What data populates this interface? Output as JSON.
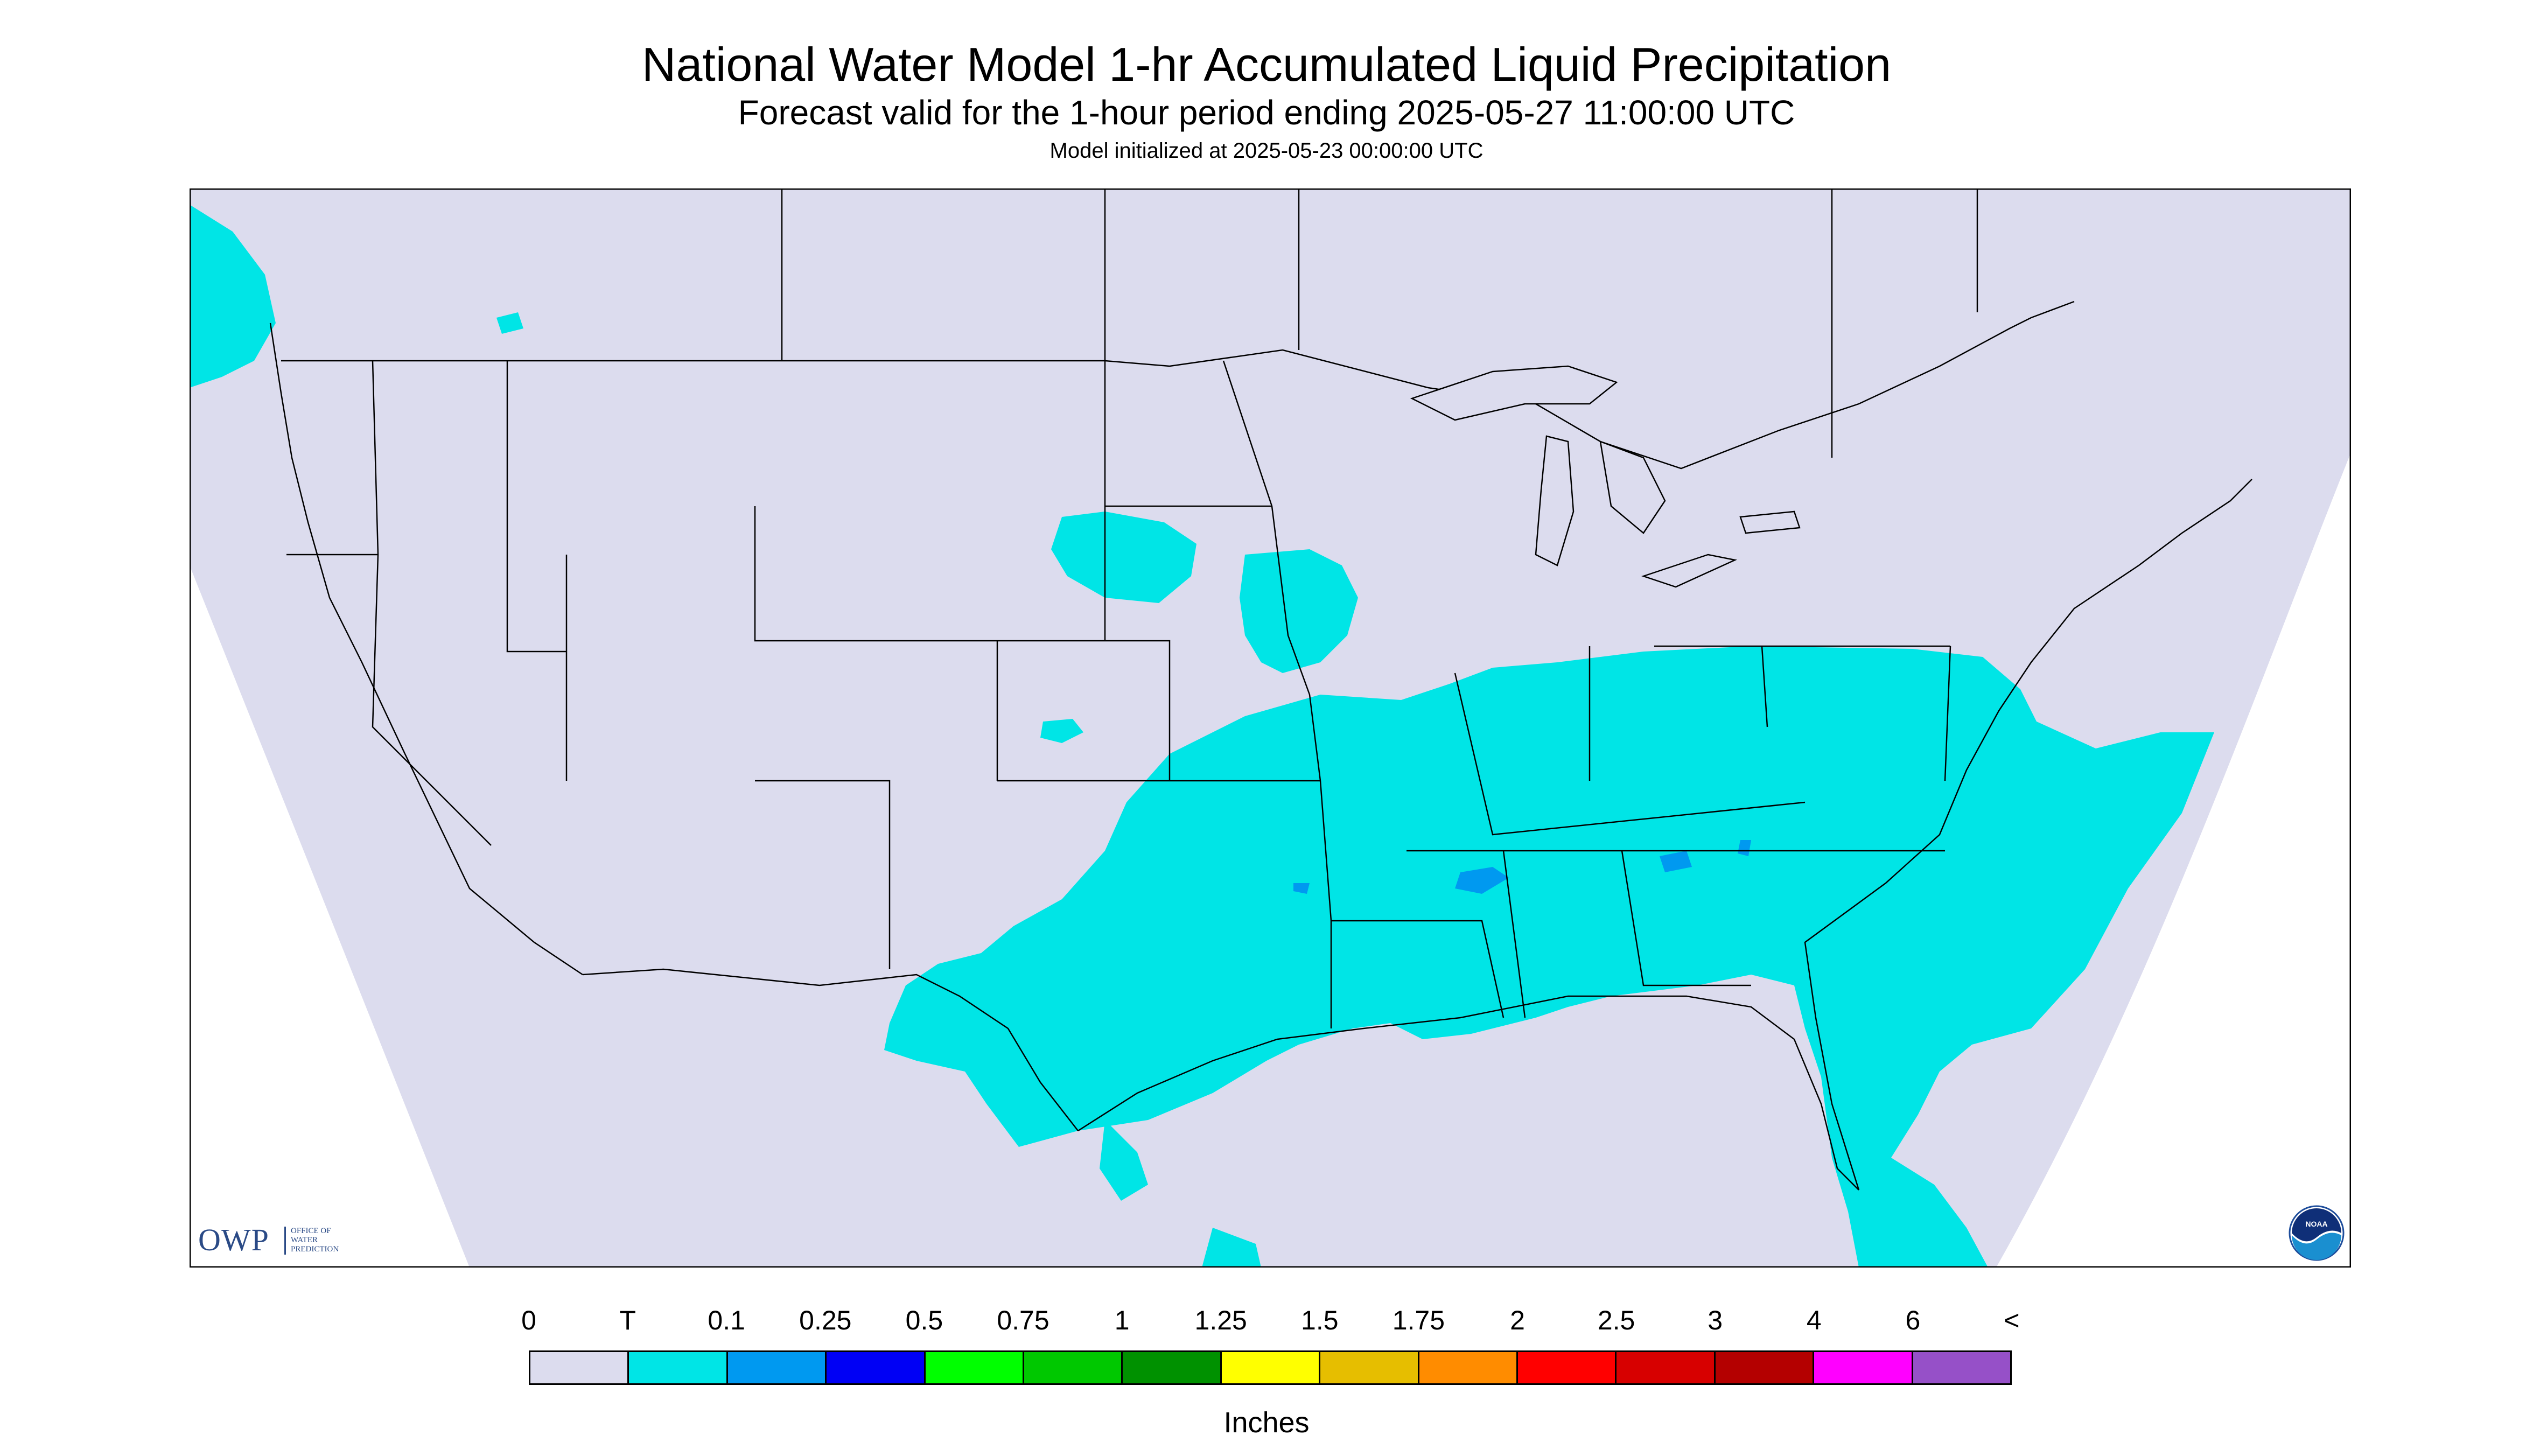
{
  "title": "National Water Model 1-hr Accumulated Liquid Precipitation",
  "subtitle": "Forecast valid for the 1-hour period ending 2025-05-27 11:00:00 UTC",
  "init_line": "Model initialized at 2025-05-23 00:00:00 UTC",
  "owp_logo": {
    "letters": "OWP",
    "subtext": "OFFICE OF\nWATER\nPREDICTION"
  },
  "noaa_logo": {
    "text": "NOAA",
    "icon": "noaa-emblem-icon"
  },
  "legend": {
    "units": "Inches",
    "labels": [
      "0",
      "T",
      "0.1",
      "0.25",
      "0.5",
      "0.75",
      "1",
      "1.25",
      "1.5",
      "1.75",
      "2",
      "2.5",
      "3",
      "4",
      "6",
      "<"
    ],
    "colors": [
      "#dcdcee",
      "#00e5e6",
      "#0099f0",
      "#0000f5",
      "#00ff00",
      "#00c800",
      "#009100",
      "#ffff00",
      "#e6be00",
      "#ff8c00",
      "#ff0000",
      "#d70000",
      "#b40000",
      "#ff00ff",
      "#9650c8"
    ]
  },
  "map_colors": {
    "background": "#dcdcee",
    "outside": "#ffffff",
    "precip_trace": "#00e5e6",
    "precip_light": "#0099f0",
    "boundary": "#000000"
  }
}
